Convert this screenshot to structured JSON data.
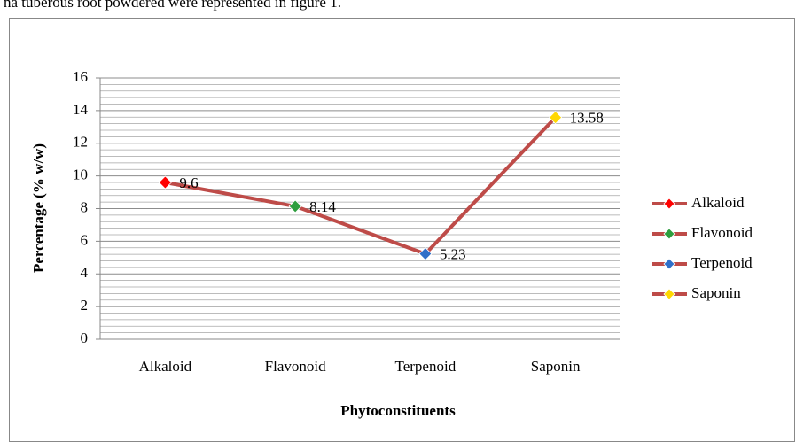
{
  "header_text": "na tuberous root powdered were represented in figure 1.",
  "chart_data": {
    "type": "line",
    "x_label": "Phytoconstituents",
    "y_label": "Percentage (% w/w)",
    "categories": [
      "Alkaloid",
      "Flavonoid",
      "Terpenoid",
      "Saponin"
    ],
    "values": [
      9.6,
      8.14,
      5.23,
      13.58
    ],
    "color": "#be4b48",
    "point_colors": [
      "#ff0000",
      "#2e9e3e",
      "#2f6fc9",
      "#ffd800"
    ],
    "ylim": [
      0,
      16
    ],
    "yticks": [
      0,
      2,
      4,
      6,
      8,
      10,
      12,
      14,
      16
    ],
    "grid": true,
    "minor_grid": 5,
    "legend": "right"
  }
}
